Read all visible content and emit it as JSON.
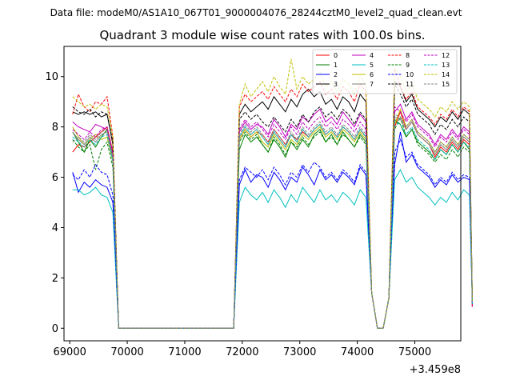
{
  "chart_data": {
    "type": "line",
    "suptitle": "Data file: modeM0/AS1A10_067T01_9000004076_28244cztM0_level2_quad_clean.evt",
    "title": "Quadrant 3 module wise count rates with 100.0s bins.",
    "xlabel": "",
    "ylabel": "",
    "x_offset_label": "+3.459e8",
    "xlim": [
      68900,
      75800
    ],
    "ylim": [
      -0.5,
      11.2
    ],
    "xticks": [
      69000,
      70000,
      71000,
      72000,
      73000,
      74000,
      75000
    ],
    "xtick_labels": [
      "69000",
      "70000",
      "71000",
      "72000",
      "73000",
      "74000",
      "75000"
    ],
    "yticks": [
      0,
      2,
      4,
      6,
      8,
      10
    ],
    "ytick_labels": [
      "0",
      "2",
      "4",
      "6",
      "8",
      "10"
    ],
    "legend_position": "top-right",
    "segments": [
      {
        "x_start": 69050,
        "bins": 8
      },
      {
        "x_start": 69850,
        "bins": 21
      },
      {
        "x_start": 71950,
        "bins": 23
      },
      {
        "x_start": 74250,
        "bins": 14
      }
    ],
    "series": [
      {
        "name": "0",
        "color": "#ff0000",
        "dash": "solid",
        "seg1": [
          7.0,
          7.3,
          7.2,
          7.4,
          7.6,
          7.8,
          8.0,
          7.0
        ],
        "seg3": [
          7.5,
          7.9,
          7.6,
          7.8,
          7.7,
          7.4,
          7.9,
          7.6,
          7.3,
          7.7,
          7.5,
          7.8,
          7.6,
          7.9,
          8.1,
          7.7,
          7.9,
          7.6,
          8.0,
          7.8,
          7.5,
          7.9,
          7.6
        ],
        "seg4": [
          8.0,
          8.6,
          7.9,
          8.2,
          7.7,
          7.5,
          7.3,
          6.8,
          7.2,
          7.0,
          7.4,
          7.1,
          7.5,
          7.3
        ]
      },
      {
        "name": "1",
        "color": "#008000",
        "dash": "solid",
        "seg1": [
          7.8,
          7.4,
          7.0,
          7.5,
          7.2,
          7.6,
          7.9,
          6.8
        ],
        "seg3": [
          7.1,
          7.7,
          7.4,
          7.6,
          7.3,
          7.0,
          7.5,
          7.2,
          6.8,
          7.4,
          7.1,
          7.5,
          7.2,
          7.7,
          7.9,
          7.4,
          7.7,
          7.3,
          7.8,
          7.5,
          7.2,
          7.7,
          7.4
        ],
        "seg4": [
          8.3,
          8.1,
          7.6,
          7.9,
          7.4,
          7.2,
          7.0,
          6.7,
          7.1,
          6.9,
          7.3,
          7.0,
          7.4,
          7.1
        ]
      },
      {
        "name": "2",
        "color": "#0000ff",
        "dash": "solid",
        "seg1": [
          6.2,
          5.4,
          5.8,
          5.6,
          5.9,
          5.7,
          5.6,
          5.0
        ],
        "seg3": [
          5.7,
          6.3,
          5.8,
          6.1,
          6.0,
          5.6,
          6.2,
          5.9,
          5.5,
          6.0,
          5.8,
          6.4,
          6.1,
          5.7,
          6.3,
          5.9,
          6.1,
          5.8,
          6.2,
          6.0,
          5.7,
          6.4,
          6.1
        ],
        "seg4": [
          6.5,
          7.8,
          6.6,
          6.9,
          6.4,
          6.2,
          6.0,
          5.6,
          5.9,
          5.7,
          6.1,
          5.8,
          6.0,
          5.9
        ]
      },
      {
        "name": "3",
        "color": "#000000",
        "dash": "solid",
        "seg1": [
          8.6,
          8.5,
          8.6,
          8.5,
          8.6,
          8.4,
          8.5,
          7.3
        ],
        "seg3": [
          8.5,
          8.9,
          8.6,
          8.8,
          9.0,
          8.7,
          9.2,
          8.9,
          8.6,
          9.1,
          8.8,
          9.3,
          9.5,
          9.2,
          9.4,
          8.9,
          9.1,
          8.7,
          9.2,
          9.0,
          8.6,
          9.3,
          9.0
        ],
        "seg4": [
          9.8,
          9.6,
          9.0,
          9.3,
          8.7,
          8.5,
          8.3,
          8.0,
          8.4,
          8.2,
          8.6,
          8.3,
          8.7,
          8.5
        ]
      },
      {
        "name": "4",
        "color": "#bf00bf",
        "dash": "solid",
        "seg1": [
          8.2,
          8.0,
          7.9,
          7.8,
          8.1,
          8.0,
          7.9,
          6.9
        ],
        "seg3": [
          7.8,
          8.2,
          7.9,
          8.1,
          8.0,
          7.7,
          8.3,
          8.0,
          7.6,
          8.1,
          7.9,
          8.4,
          8.2,
          8.5,
          8.7,
          8.2,
          8.4,
          8.1,
          8.6,
          8.3,
          8.0,
          8.5,
          8.2
        ],
        "seg4": [
          8.6,
          8.9,
          8.3,
          8.6,
          8.1,
          7.9,
          7.7,
          7.3,
          7.7,
          7.5,
          7.9,
          7.6,
          8.0,
          7.8
        ]
      },
      {
        "name": "5",
        "color": "#00bfbf",
        "dash": "solid",
        "seg1": [
          5.5,
          5.5,
          5.3,
          5.4,
          5.6,
          5.3,
          5.2,
          4.6
        ],
        "seg3": [
          5.0,
          5.6,
          5.3,
          5.1,
          5.4,
          5.0,
          5.5,
          5.2,
          4.8,
          5.3,
          5.0,
          5.6,
          5.3,
          5.0,
          5.5,
          5.1,
          5.3,
          5.0,
          5.4,
          5.2,
          4.9,
          5.5,
          5.2
        ],
        "seg4": [
          5.9,
          6.3,
          5.8,
          6.0,
          5.6,
          5.4,
          5.2,
          4.9,
          5.2,
          5.0,
          5.4,
          5.1,
          5.5,
          5.3
        ]
      },
      {
        "name": "6",
        "color": "#bfbf00",
        "dash": "solid",
        "seg1": [
          8.0,
          7.6,
          7.3,
          7.5,
          7.7,
          7.5,
          7.6,
          6.6
        ],
        "seg3": [
          7.5,
          7.9,
          7.6,
          7.8,
          7.4,
          7.2,
          7.7,
          7.4,
          7.1,
          7.5,
          7.3,
          7.7,
          7.5,
          7.8,
          8.0,
          7.6,
          7.8,
          7.5,
          7.9,
          7.7,
          7.4,
          7.8,
          7.5
        ],
        "seg4": [
          8.1,
          8.7,
          8.0,
          8.3,
          7.8,
          7.6,
          7.4,
          7.0,
          7.4,
          7.2,
          7.6,
          7.3,
          7.7,
          7.5
        ]
      },
      {
        "name": "7",
        "color": "#808080",
        "dash": "solid",
        "seg1": [
          7.8,
          7.5,
          7.3,
          7.6,
          7.4,
          7.7,
          7.8,
          6.7
        ],
        "seg3": [
          7.6,
          8.0,
          7.7,
          7.9,
          7.6,
          7.3,
          7.8,
          7.5,
          7.2,
          7.7,
          7.4,
          7.9,
          7.6,
          7.9,
          8.1,
          7.7,
          7.9,
          7.6,
          8.0,
          7.8,
          7.5,
          7.9,
          7.6
        ],
        "seg4": [
          8.4,
          8.3,
          7.9,
          8.2,
          7.7,
          7.5,
          7.3,
          6.9,
          7.3,
          7.1,
          7.5,
          7.2,
          7.6,
          7.4
        ]
      },
      {
        "name": "8",
        "color": "#ff0000",
        "dash": "dashed",
        "seg1": [
          8.5,
          9.3,
          8.8,
          8.6,
          9.0,
          8.9,
          9.2,
          7.6
        ],
        "seg3": [
          8.8,
          9.3,
          9.0,
          9.2,
          9.4,
          9.1,
          9.6,
          9.3,
          9.0,
          9.5,
          9.2,
          9.7,
          9.4,
          9.6,
          9.8,
          9.3,
          9.5,
          9.1,
          9.6,
          9.4,
          9.0,
          9.7,
          9.4
        ],
        "seg4": [
          10.3,
          9.6,
          9.1,
          9.4,
          8.8,
          8.6,
          8.4,
          8.1,
          8.5,
          8.3,
          8.7,
          8.4,
          8.8,
          8.6
        ]
      },
      {
        "name": "9",
        "color": "#008000",
        "dash": "dashed",
        "seg1": [
          7.5,
          7.2,
          7.0,
          7.3,
          6.3,
          7.1,
          7.4,
          6.4
        ],
        "seg3": [
          7.4,
          7.8,
          7.5,
          7.7,
          7.3,
          7.0,
          7.6,
          7.3,
          6.9,
          7.4,
          7.2,
          7.6,
          7.3,
          7.6,
          7.8,
          7.4,
          7.6,
          7.3,
          7.7,
          7.5,
          7.2,
          7.6,
          7.3
        ],
        "seg4": [
          7.9,
          8.4,
          7.6,
          7.9,
          7.3,
          7.1,
          6.9,
          6.6,
          6.9,
          6.7,
          7.1,
          6.8,
          7.2,
          7.0
        ]
      },
      {
        "name": "10",
        "color": "#0000ff",
        "dash": "dashed",
        "seg1": [
          6.1,
          5.9,
          6.3,
          6.0,
          6.5,
          6.2,
          6.1,
          5.3
        ],
        "seg3": [
          5.9,
          6.4,
          6.2,
          6.0,
          6.3,
          5.9,
          6.4,
          6.1,
          5.7,
          6.2,
          6.0,
          6.5,
          6.2,
          6.6,
          6.4,
          6.0,
          6.2,
          5.9,
          6.3,
          6.1,
          5.8,
          6.5,
          6.2
        ],
        "seg4": [
          7.0,
          7.5,
          6.8,
          7.0,
          6.5,
          6.3,
          6.1,
          5.7,
          6.0,
          5.8,
          6.2,
          5.9,
          6.1,
          6.0
        ]
      },
      {
        "name": "11",
        "color": "#000000",
        "dash": "dashed",
        "seg1": [
          8.8,
          8.6,
          8.5,
          8.7,
          8.4,
          8.6,
          8.5,
          7.4
        ],
        "seg3": [
          8.3,
          8.6,
          8.3,
          8.5,
          8.2,
          8.0,
          8.4,
          8.1,
          7.8,
          8.3,
          8.0,
          8.5,
          8.2,
          8.6,
          8.8,
          8.4,
          8.6,
          8.3,
          8.7,
          8.5,
          8.1,
          8.6,
          8.3
        ],
        "seg4": [
          9.7,
          9.3,
          8.8,
          9.1,
          8.5,
          8.3,
          8.1,
          7.7,
          8.1,
          7.9,
          8.3,
          8.0,
          8.4,
          8.2
        ]
      },
      {
        "name": "12",
        "color": "#bf00bf",
        "dash": "dashed",
        "seg1": [
          7.9,
          7.7,
          7.5,
          7.8,
          7.6,
          7.9,
          8.0,
          6.9
        ],
        "seg3": [
          7.9,
          8.3,
          8.0,
          8.2,
          7.9,
          7.6,
          8.1,
          7.8,
          7.5,
          8.0,
          7.7,
          8.2,
          7.9,
          8.2,
          8.4,
          8.0,
          8.2,
          7.9,
          8.3,
          8.1,
          7.8,
          8.2,
          7.9
        ],
        "seg4": [
          8.8,
          8.6,
          8.2,
          8.5,
          8.0,
          7.8,
          7.6,
          7.2,
          7.6,
          7.4,
          7.8,
          7.5,
          7.9,
          7.7
        ]
      },
      {
        "name": "13",
        "color": "#00bfbf",
        "dash": "dashed",
        "seg1": [
          7.6,
          7.4,
          7.2,
          7.5,
          7.3,
          7.6,
          7.7,
          6.6
        ],
        "seg3": [
          7.6,
          8.0,
          7.7,
          7.9,
          7.6,
          7.3,
          7.8,
          7.5,
          7.2,
          7.7,
          7.4,
          7.9,
          7.6,
          7.9,
          8.1,
          7.7,
          7.9,
          7.6,
          8.0,
          7.8,
          7.5,
          7.9,
          7.6
        ],
        "seg4": [
          8.2,
          8.1,
          7.7,
          8.0,
          7.5,
          7.3,
          7.1,
          6.7,
          7.1,
          6.9,
          7.3,
          7.0,
          7.4,
          7.2
        ]
      },
      {
        "name": "14",
        "color": "#bfbf00",
        "dash": "dashed",
        "seg1": [
          9.2,
          9.0,
          8.8,
          8.9,
          8.7,
          8.9,
          8.8,
          7.6
        ],
        "seg3": [
          8.9,
          9.7,
          9.2,
          9.5,
          9.8,
          9.4,
          10.0,
          9.6,
          9.3,
          10.7,
          9.5,
          10.0,
          9.7,
          9.9,
          10.2,
          9.6,
          9.8,
          9.4,
          9.9,
          9.7,
          9.3,
          10.0,
          9.7
        ],
        "seg4": [
          10.3,
          10.0,
          9.4,
          9.7,
          9.1,
          8.9,
          8.7,
          8.4,
          8.8,
          8.6,
          9.0,
          8.7,
          9.0,
          8.8
        ]
      },
      {
        "name": "15",
        "color": "#808080",
        "dash": "dashed",
        "seg1": [
          7.4,
          7.6,
          7.4,
          7.7,
          7.5,
          7.8,
          7.9,
          6.8
        ],
        "seg3": [
          7.7,
          8.1,
          7.8,
          8.0,
          7.7,
          7.4,
          7.9,
          7.6,
          7.3,
          7.8,
          7.5,
          8.0,
          7.7,
          8.0,
          8.2,
          7.8,
          8.0,
          7.7,
          8.1,
          7.9,
          7.6,
          8.0,
          7.7
        ],
        "seg4": [
          8.5,
          8.4,
          8.0,
          8.3,
          7.8,
          7.6,
          7.4,
          7.0,
          7.4,
          7.2,
          7.6,
          7.3,
          7.7,
          7.5
        ]
      }
    ]
  }
}
